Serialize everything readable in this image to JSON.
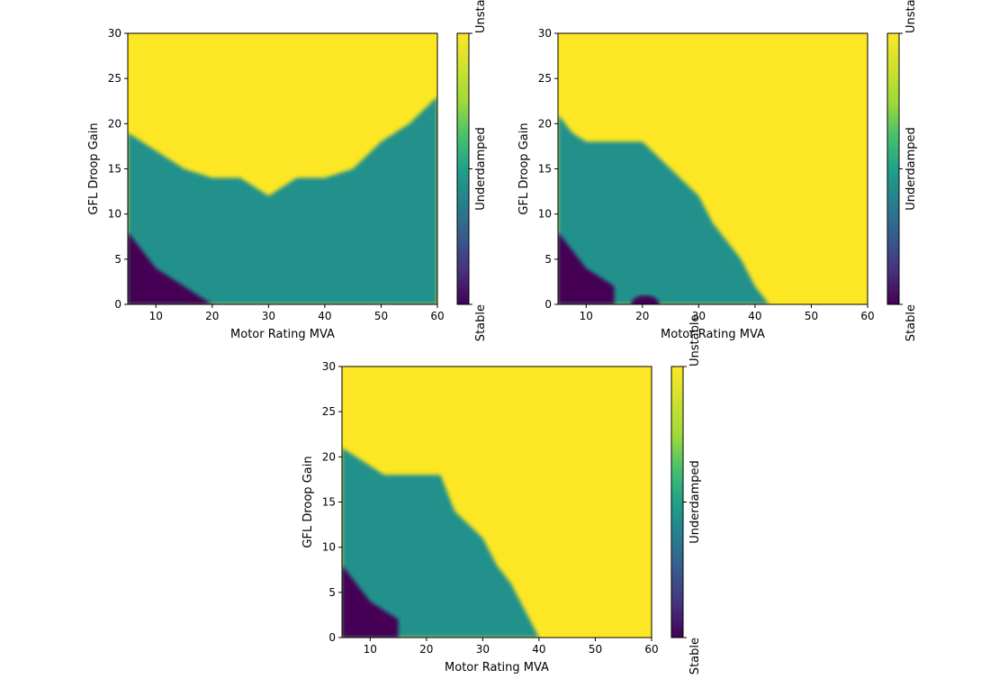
{
  "chart_data": [
    {
      "type": "heatmap",
      "xlabel": "Motor Rating MVA",
      "ylabel": "GFL Droop Gain",
      "xlim": [
        5,
        60
      ],
      "ylim": [
        0,
        30
      ],
      "xticks": [
        10,
        20,
        30,
        40,
        50,
        60
      ],
      "yticks": [
        0,
        5,
        10,
        15,
        20,
        25,
        30
      ],
      "colorbar": {
        "labels": [
          "Stable",
          "Underdamped",
          "Unstable"
        ],
        "values": [
          0,
          1,
          2
        ]
      },
      "regions": {
        "unstable_boundary": {
          "x": [
            5,
            10,
            15,
            20,
            25,
            30,
            35,
            40,
            45,
            50,
            55,
            60
          ],
          "y": [
            19,
            17,
            15,
            14,
            14,
            12,
            14,
            14,
            15,
            18,
            20,
            23
          ]
        },
        "stable_boundary": {
          "x": [
            5,
            7.5,
            10,
            12.5,
            15,
            17.5,
            20
          ],
          "y": [
            8,
            6,
            4,
            3,
            2,
            1,
            0
          ]
        }
      }
    },
    {
      "type": "heatmap",
      "xlabel": "Motor Rating MVA",
      "ylabel": "GFL Droop Gain",
      "xlim": [
        5,
        60
      ],
      "ylim": [
        0,
        30
      ],
      "xticks": [
        10,
        20,
        30,
        40,
        50,
        60
      ],
      "yticks": [
        0,
        5,
        10,
        15,
        20,
        25,
        30
      ],
      "colorbar": {
        "labels": [
          "Stable",
          "Underdamped",
          "Unstable"
        ],
        "values": [
          0,
          1,
          2
        ]
      },
      "regions": {
        "unstable_boundary": {
          "x": [
            5,
            7.5,
            10,
            20,
            25,
            30,
            32.5,
            35,
            37.5,
            40,
            42.5
          ],
          "y": [
            21,
            19,
            18,
            18,
            15,
            12,
            9,
            7,
            5,
            2,
            0
          ]
        },
        "stable_boundary": {
          "x": [
            5,
            7.5,
            10,
            12.5,
            15
          ],
          "y": [
            8,
            6,
            4,
            3,
            2
          ]
        },
        "stable_spot": {
          "x": [
            18,
            23
          ],
          "y": [
            0,
            1
          ]
        }
      }
    },
    {
      "type": "heatmap",
      "xlabel": "Motor Rating MVA",
      "ylabel": "GFL Droop Gain",
      "xlim": [
        5,
        60
      ],
      "ylim": [
        0,
        30
      ],
      "xticks": [
        10,
        20,
        30,
        40,
        50,
        60
      ],
      "yticks": [
        0,
        5,
        10,
        15,
        20,
        25,
        30
      ],
      "colorbar": {
        "labels": [
          "Stable",
          "Underdamped",
          "Unstable"
        ],
        "values": [
          0,
          1,
          2
        ]
      },
      "regions": {
        "unstable_boundary": {
          "x": [
            5,
            7.5,
            12.5,
            22.5,
            25,
            30,
            32.5,
            35,
            37.5,
            40
          ],
          "y": [
            21,
            20,
            18,
            18,
            14,
            11,
            8,
            6,
            3,
            0
          ]
        },
        "stable_boundary": {
          "x": [
            5,
            7.5,
            10,
            12.5,
            15
          ],
          "y": [
            8,
            6,
            4,
            3,
            2
          ]
        }
      }
    }
  ],
  "colors": {
    "unstable": "#fde725",
    "underdamped": "#21918c",
    "stable": "#440154"
  }
}
